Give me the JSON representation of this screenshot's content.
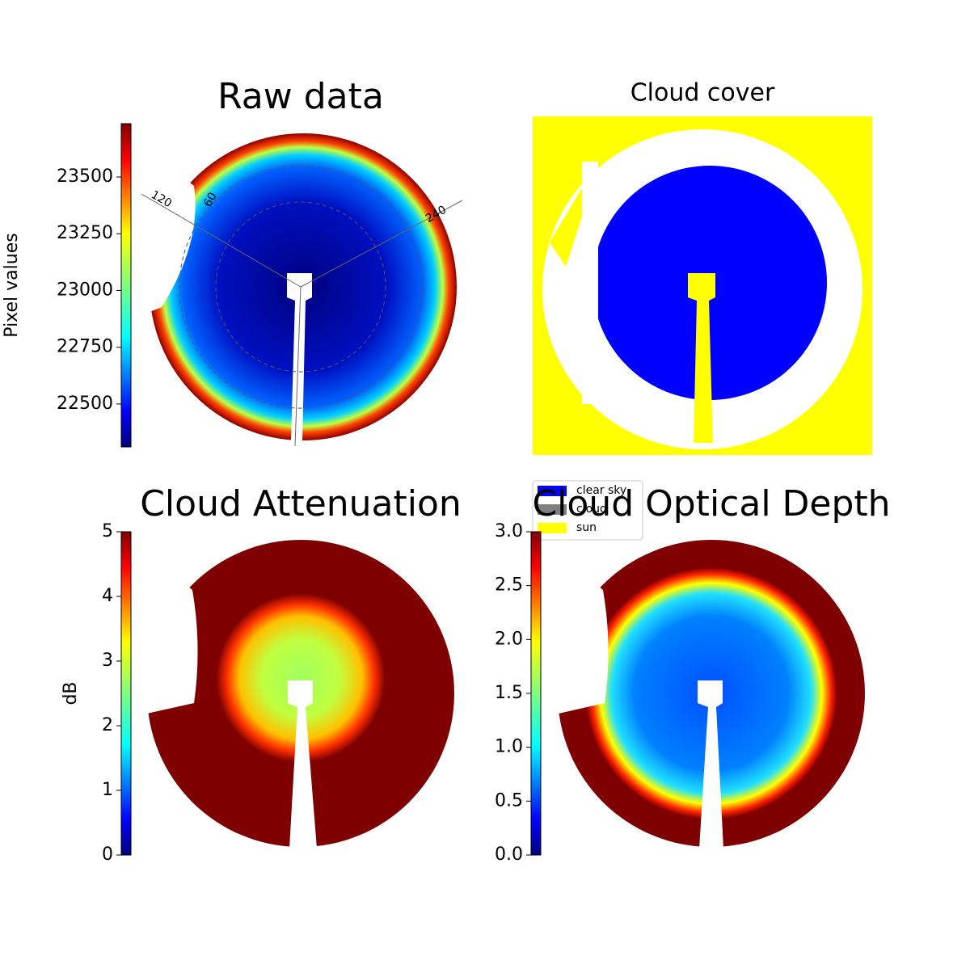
{
  "chart_data": [
    {
      "type": "image",
      "title": "Raw data",
      "colorbar": {
        "label": "Pixel values",
        "lim": [
          22311,
          23735
        ],
        "ticks": [
          22500,
          22750,
          23000,
          23250,
          23500
        ]
      },
      "annotations": [
        "120",
        "60",
        "240"
      ]
    },
    {
      "type": "categorical-image",
      "title": "Cloud cover",
      "series": [
        {
          "name": "clear sky",
          "color": "#0000ff"
        },
        {
          "name": "cloud",
          "color": "#808080"
        },
        {
          "name": "sun",
          "color": "#ffff00"
        }
      ]
    },
    {
      "type": "image",
      "title": "Cloud Attenuation",
      "colorbar": {
        "label": "dB",
        "lim": [
          0,
          5
        ],
        "ticks": [
          0,
          1,
          2,
          3,
          4,
          5
        ]
      }
    },
    {
      "type": "image",
      "title": "Cloud Optical Depth",
      "colorbar": {
        "lim": [
          0,
          3
        ],
        "ticks": [
          {
            "value": 0,
            "label": "0.0"
          },
          0.5,
          {
            "value": 1,
            "label": "1.0"
          },
          1.5,
          {
            "value": 2,
            "label": "2.0"
          },
          2.5,
          {
            "value": 3,
            "label": "3.0"
          }
        ]
      }
    }
  ]
}
